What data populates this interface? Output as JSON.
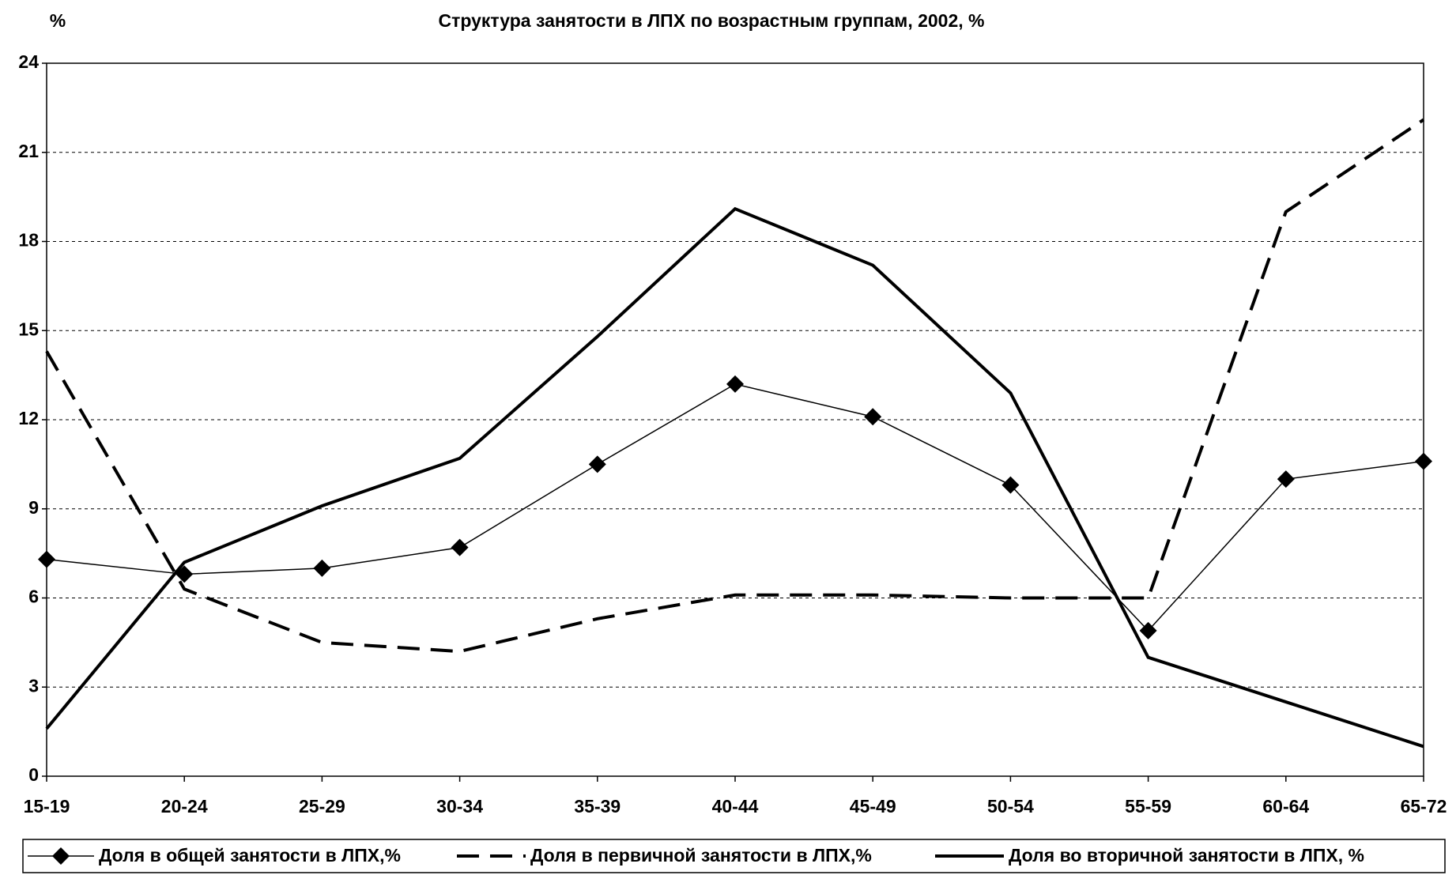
{
  "chart_data": {
    "type": "line",
    "title": "Структура занятости в ЛПХ по возрастным группам, 2002, %",
    "y_axis_label": "%",
    "categories": [
      "15-19",
      "20-24",
      "25-29",
      "30-34",
      "35-39",
      "40-44",
      "45-49",
      "50-54",
      "55-59",
      "60-64",
      "65-72"
    ],
    "series": [
      {
        "name": "Доля в общей занятости в ЛПХ,%",
        "color": "#000000",
        "style": "solid",
        "width": 1.5,
        "marker": "diamond",
        "values": [
          7.3,
          6.8,
          7.0,
          7.7,
          10.5,
          13.2,
          12.1,
          9.8,
          4.9,
          10.0,
          10.6
        ]
      },
      {
        "name": "Доля в первичной занятости в ЛПХ,%",
        "color": "#000000",
        "style": "dashed",
        "width": 4,
        "values": [
          14.3,
          6.3,
          4.5,
          4.2,
          5.3,
          6.1,
          6.1,
          6.0,
          6.0,
          19.0,
          22.1
        ]
      },
      {
        "name": "Доля во вторичной занятости в ЛПХ, %",
        "color": "#000000",
        "style": "solid",
        "width": 4,
        "values": [
          1.6,
          7.2,
          9.1,
          10.7,
          14.8,
          19.1,
          17.2,
          12.9,
          4.0,
          2.5,
          1.0
        ]
      }
    ],
    "ylim": [
      0,
      24
    ],
    "yticks": [
      0,
      3,
      6,
      9,
      12,
      15,
      18,
      21,
      24
    ],
    "grid": true,
    "legend": "bottom"
  }
}
